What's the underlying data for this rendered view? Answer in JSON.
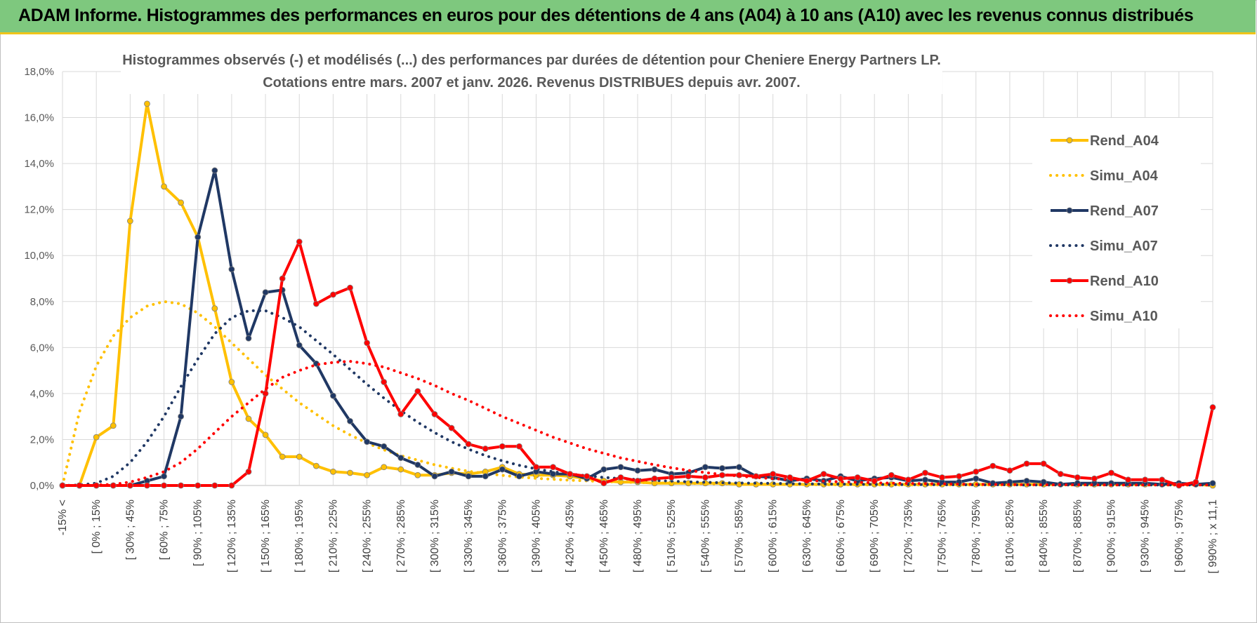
{
  "header": {
    "title": "ADAM Informe. Histogrammes des performances en euros pour des détentions de 4 ans (A04) à 10 ans (A10) avec les revenus connus distribués"
  },
  "chart_data": {
    "type": "line",
    "title": "Histogrammes observés (-) et modélisés (...) des performances par durées de détention pour Cheniere Energy Partners LP.",
    "subtitle": "Cotations entre mars. 2007 et janv. 2026. Revenus DISTRIBUES depuis avr. 2007.",
    "xlabel": "",
    "ylabel": "",
    "ylim": [
      0,
      18
    ],
    "y_ticks": [
      0,
      2,
      4,
      6,
      8,
      10,
      12,
      14,
      16,
      18
    ],
    "y_tick_labels": [
      "0,0%",
      "2,0%",
      "4,0%",
      "6,0%",
      "8,0%",
      "10,0%",
      "12,0%",
      "14,0%",
      "16,0%",
      "18,0%"
    ],
    "grid": true,
    "legend_position": "right",
    "x_tick_labels": [
      "-15% <",
      "[ 0% ; 15%",
      "[ 30% ; 45%",
      "[ 60% ; 75%",
      "[ 90% ; 105%",
      "[ 120% ; 135%",
      "[ 150% ; 165%",
      "[ 180% ; 195%",
      "[ 210% ; 225%",
      "[ 240% ; 255%",
      "[ 270% ; 285%",
      "[ 300% ; 315%",
      "[ 330% ; 345%",
      "[ 360% ; 375%",
      "[ 390% ; 405%",
      "[ 420% ; 435%",
      "[ 450% ; 465%",
      "[ 480% ; 495%",
      "[ 510% ; 525%",
      "[ 540% ; 555%",
      "[ 570% ; 585%",
      "[ 600% ; 615%",
      "[ 630% ; 645%",
      "[ 660% ; 675%",
      "[ 690% ; 705%",
      "[ 720% ; 735%",
      "[ 750% ; 765%",
      "[ 780% ; 795%",
      "[ 810% ; 825%",
      "[ 840% ; 855%",
      "[ 870% ; 885%",
      "[ 900% ; 915%",
      "[ 930% ; 945%",
      "[ 960% ; 975%",
      "[ 990% ; x 11,1"
    ],
    "series": [
      {
        "name": "Rend_A04",
        "color": "#ffc000",
        "style": "solid",
        "markers": true,
        "values": [
          0,
          0,
          2.1,
          2.6,
          11.5,
          16.6,
          13,
          12.3,
          10.8,
          7.7,
          4.5,
          2.9,
          2.2,
          1.25,
          1.25,
          0.85,
          0.6,
          0.55,
          0.45,
          0.8,
          0.7,
          0.45,
          0.45,
          0.55,
          0.5,
          0.6,
          0.8,
          0.5,
          0.45,
          0.45,
          0.4,
          0.3,
          0.2,
          0.15,
          0.15,
          0.1,
          0.1,
          0.1,
          0.1,
          0.1,
          0.05,
          0.05,
          0.05,
          0.05,
          0.05,
          0.05,
          0.05,
          0.05,
          0.05,
          0.05,
          0.05,
          0.05,
          0.05,
          0.05,
          0.05,
          0.05,
          0.05,
          0.05,
          0.05,
          0.05,
          0.05,
          0.05,
          0.05,
          0.05,
          0.05,
          0.05,
          0.05,
          0.05,
          0
        ]
      },
      {
        "name": "Simu_A04",
        "color": "#ffc000",
        "style": "dotted",
        "markers": false,
        "values": [
          0,
          3.2,
          5.2,
          6.5,
          7.3,
          7.8,
          8,
          7.9,
          7.5,
          6.9,
          6.2,
          5.5,
          4.8,
          4.2,
          3.6,
          3.1,
          2.6,
          2.2,
          1.85,
          1.55,
          1.3,
          1.1,
          0.9,
          0.75,
          0.62,
          0.52,
          0.44,
          0.37,
          0.31,
          0.27,
          0.23,
          0.2,
          0.17,
          0.15,
          0.13,
          0.11,
          0.1,
          0.09,
          0.08,
          0.07,
          0.06,
          0.05,
          0.05,
          0.04,
          0.04,
          0.03,
          0.03,
          0.03,
          0.02,
          0.02,
          0.02,
          0.02,
          0.02,
          0.02,
          0.02,
          0.02,
          0.02,
          0.02,
          0.02,
          0.02,
          0.02,
          0.02,
          0.02,
          0.02,
          0.02,
          0.02,
          0.02,
          0.02,
          0.02
        ]
      },
      {
        "name": "Rend_A07",
        "color": "#203864",
        "style": "solid",
        "markers": true,
        "values": [
          0,
          0,
          0,
          0,
          0,
          0.2,
          0.4,
          3,
          10.8,
          13.7,
          9.4,
          6.4,
          8.4,
          8.5,
          6.1,
          5.3,
          3.9,
          2.8,
          1.9,
          1.7,
          1.2,
          0.9,
          0.4,
          0.6,
          0.4,
          0.4,
          0.7,
          0.4,
          0.6,
          0.5,
          0.5,
          0.3,
          0.7,
          0.8,
          0.65,
          0.7,
          0.5,
          0.55,
          0.8,
          0.75,
          0.8,
          0.4,
          0.35,
          0.2,
          0.3,
          0.2,
          0.4,
          0.2,
          0.3,
          0.35,
          0.2,
          0.25,
          0.15,
          0.15,
          0.3,
          0.1,
          0.15,
          0.2,
          0.15,
          0.05,
          0.1,
          0.1,
          0.1,
          0.1,
          0.1,
          0.05,
          0.1,
          0.05,
          0.1
        ]
      },
      {
        "name": "Simu_A07",
        "color": "#203864",
        "style": "dotted",
        "markers": false,
        "values": [
          0,
          0.02,
          0.1,
          0.4,
          1,
          1.9,
          3,
          4.3,
          5.5,
          6.6,
          7.3,
          7.6,
          7.6,
          7.3,
          6.9,
          6.3,
          5.7,
          5.05,
          4.4,
          3.8,
          3.25,
          2.75,
          2.3,
          1.9,
          1.58,
          1.3,
          1.07,
          0.88,
          0.72,
          0.6,
          0.5,
          0.42,
          0.35,
          0.3,
          0.26,
          0.22,
          0.19,
          0.16,
          0.14,
          0.12,
          0.11,
          0.1,
          0.09,
          0.08,
          0.07,
          0.06,
          0.06,
          0.05,
          0.05,
          0.04,
          0.04,
          0.04,
          0.03,
          0.03,
          0.03,
          0.03,
          0.03,
          0.02,
          0.02,
          0.02,
          0.02,
          0.02,
          0.02,
          0.02,
          0.02,
          0.02,
          0.02,
          0.02,
          0.02
        ]
      },
      {
        "name": "Rend_A10",
        "color": "#ff0000",
        "style": "solid",
        "markers": true,
        "values": [
          0,
          0,
          0,
          0,
          0,
          0,
          0,
          0,
          0,
          0,
          0,
          0.6,
          4,
          9,
          10.6,
          7.9,
          8.3,
          8.6,
          6.2,
          4.5,
          3.1,
          4.1,
          3.1,
          2.5,
          1.8,
          1.6,
          1.7,
          1.7,
          0.8,
          0.8,
          0.5,
          0.4,
          0.1,
          0.35,
          0.2,
          0.3,
          0.35,
          0.4,
          0.35,
          0.45,
          0.45,
          0.4,
          0.5,
          0.35,
          0.2,
          0.5,
          0.3,
          0.35,
          0.2,
          0.45,
          0.25,
          0.55,
          0.35,
          0.4,
          0.6,
          0.85,
          0.65,
          0.95,
          0.95,
          0.5,
          0.35,
          0.3,
          0.55,
          0.25,
          0.25,
          0.25,
          0,
          0.15,
          3.4
        ]
      },
      {
        "name": "Simu_A10",
        "color": "#ff0000",
        "style": "dotted",
        "markers": false,
        "values": [
          0,
          0,
          0.02,
          0.05,
          0.15,
          0.35,
          0.6,
          1,
          1.6,
          2.3,
          3,
          3.6,
          4.2,
          4.7,
          5,
          5.25,
          5.35,
          5.4,
          5.3,
          5.15,
          4.9,
          4.65,
          4.35,
          4,
          3.7,
          3.35,
          3,
          2.7,
          2.4,
          2.1,
          1.85,
          1.6,
          1.4,
          1.2,
          1.05,
          0.9,
          0.77,
          0.66,
          0.56,
          0.48,
          0.41,
          0.35,
          0.3,
          0.26,
          0.22,
          0.19,
          0.16,
          0.14,
          0.12,
          0.1,
          0.09,
          0.08,
          0.07,
          0.06,
          0.05,
          0.05,
          0.04,
          0.04,
          0.03,
          0.03,
          0.03,
          0.03,
          0.02,
          0.02,
          0.02,
          0.02,
          0.02,
          0.02,
          0.02
        ]
      }
    ]
  }
}
